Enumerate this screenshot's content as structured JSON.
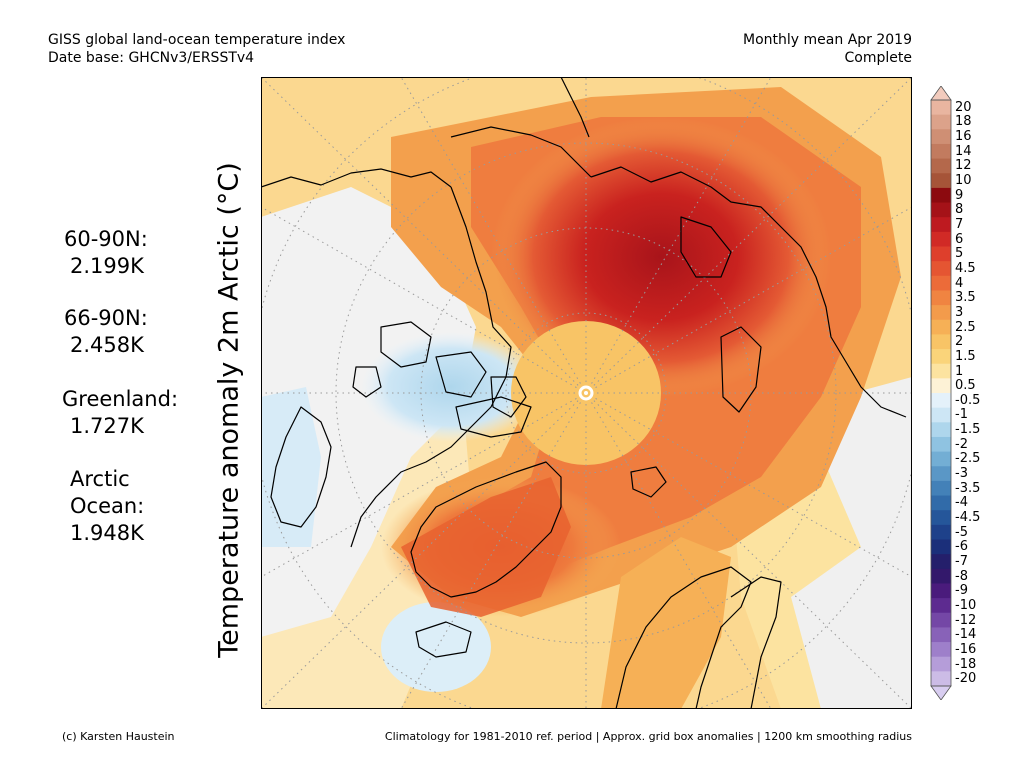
{
  "header": {
    "title_line1": "GISS global land-ocean temperature index",
    "title_line2": "Date base: GHCNv3/ERSSTv4",
    "period_line1": "Monthly mean Apr 2019",
    "period_line2": "Complete"
  },
  "stats": [
    {
      "region": "60-90N:",
      "value": "2.199K"
    },
    {
      "region": "66-90N:",
      "value": "2.458K"
    },
    {
      "region": "Greenland:",
      "value": "1.727K"
    },
    {
      "region_line1": "Arctic",
      "region_line2": "Ocean:",
      "value": "1.948K"
    }
  ],
  "y_label": "Temperature anomaly 2m Arctic (°C)",
  "colorbar": {
    "labels": [
      "20",
      "18",
      "16",
      "14",
      "12",
      "10",
      "9",
      "8",
      "7",
      "6",
      "5",
      "4.5",
      "4",
      "3.5",
      "3",
      "2.5",
      "2",
      "1.5",
      "1",
      "0.5",
      "-0.5",
      "-1",
      "-1.5",
      "-2",
      "-2.5",
      "-3",
      "-3.5",
      "-4",
      "-4.5",
      "-5",
      "-6",
      "-7",
      "-8",
      "-9",
      "-10",
      "-12",
      "-14",
      "-16",
      "-18",
      "-20"
    ],
    "colors": [
      "#e9b5a0",
      "#dca28a",
      "#cf8f74",
      "#c27b5f",
      "#b4684b",
      "#a65438",
      "#8c0a0f",
      "#a51218",
      "#be1a20",
      "#d12a26",
      "#de3f2c",
      "#e55532",
      "#ec6b39",
      "#f08441",
      "#f39b4b",
      "#f6b056",
      "#f8c466",
      "#fad47a",
      "#fce3a0",
      "#fdf2d6",
      "#e4f1fa",
      "#cde6f5",
      "#aed6ec",
      "#8fc3e1",
      "#73aed4",
      "#5a97c6",
      "#4381b8",
      "#316ba9",
      "#25569a",
      "#1e418a",
      "#1b2f7a",
      "#241f6b",
      "#33186b",
      "#4a1b7c",
      "#5d2b90",
      "#7447a6",
      "#8862b8",
      "#9e7fca",
      "#b59dd9",
      "#ccbce6"
    ],
    "low_color": "#d8cdf0",
    "high_color": "#f2cbbd"
  },
  "map": {
    "land_color": "#f2f2f2",
    "coast_color": "#000000"
  },
  "footer": {
    "left": "(c) Karsten Haustein",
    "right": "Climatology for 1981-2010 ref. period | Approx. grid box anomalies | 1200 km smoothing radius"
  }
}
